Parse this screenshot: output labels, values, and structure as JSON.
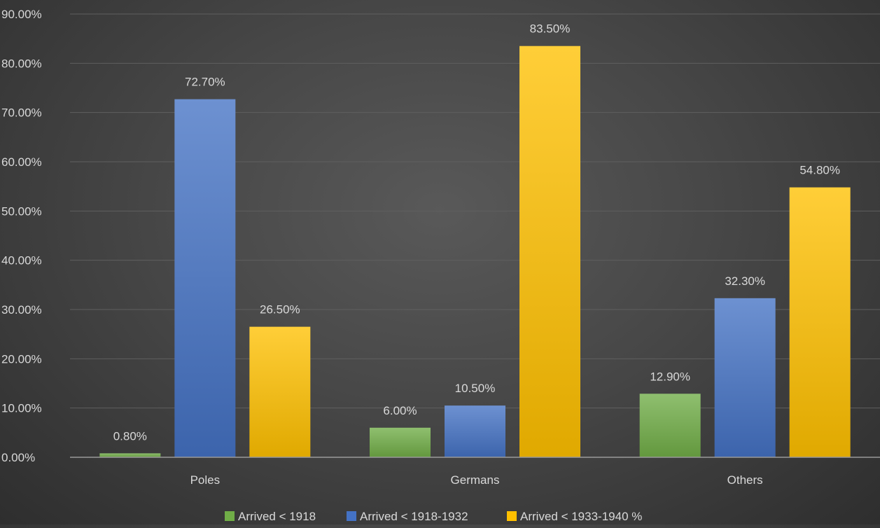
{
  "chart_data": {
    "type": "bar",
    "title": "",
    "xlabel": "",
    "ylabel": "",
    "categories": [
      "Poles",
      "Germans",
      "Others"
    ],
    "series": [
      {
        "name": "Arrived < 1918",
        "values": [
          0.8,
          6.0,
          12.9
        ],
        "color": "#70AD47"
      },
      {
        "name": "Arrived < 1918-1932",
        "values": [
          72.7,
          10.5,
          32.3
        ],
        "color": "#4472C4"
      },
      {
        "name": "Arrived < 1933-1940 %",
        "values": [
          26.5,
          83.5,
          54.8
        ],
        "color": "#FFC000"
      }
    ],
    "data_labels": [
      [
        "0.80%",
        "6.00%",
        "12.90%"
      ],
      [
        "72.70%",
        "10.50%",
        "32.30%"
      ],
      [
        "26.50%",
        "83.50%",
        "54.80%"
      ]
    ],
    "ylim": [
      0,
      90
    ],
    "yticks": [
      {
        "value": 0,
        "label": "0.00%"
      },
      {
        "value": 10,
        "label": "10.00%"
      },
      {
        "value": 20,
        "label": "20.00%"
      },
      {
        "value": 30,
        "label": "30.00%"
      },
      {
        "value": 40,
        "label": "40.00%"
      },
      {
        "value": 50,
        "label": "50.00%"
      },
      {
        "value": 60,
        "label": "60.00%"
      },
      {
        "value": 70,
        "label": "70.00%"
      },
      {
        "value": 80,
        "label": "80.00%"
      },
      {
        "value": 90,
        "label": "90.00%"
      }
    ],
    "grid": true,
    "legend_position": "bottom"
  },
  "colors": {
    "text": "#D9D9D9",
    "gridline": "#5f5f5f",
    "axis": "#9a9a9a"
  }
}
